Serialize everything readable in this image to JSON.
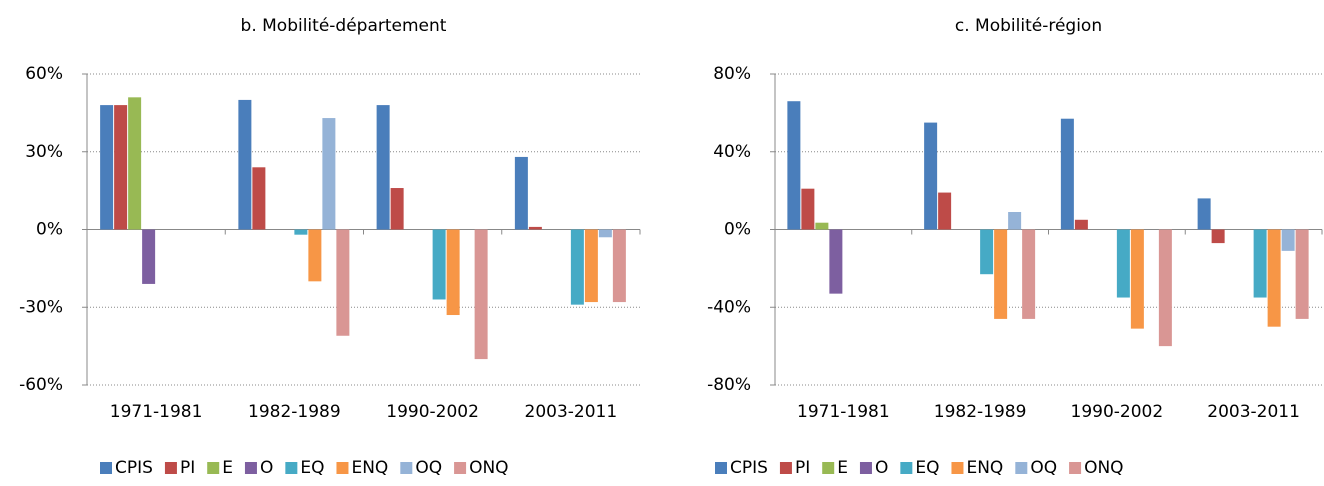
{
  "chart_data": [
    {
      "type": "bar",
      "title": "b. Mobilité-département",
      "categories": [
        "1971-1981",
        "1982-1989",
        "1990-2002",
        "2003-2011"
      ],
      "series": [
        {
          "name": "CPIS",
          "color": "#4a7ebb",
          "values": [
            48,
            50,
            48,
            28
          ]
        },
        {
          "name": "PI",
          "color": "#be4b48",
          "values": [
            48,
            24,
            16,
            1
          ]
        },
        {
          "name": "E",
          "color": "#98b954",
          "values": [
            51,
            0,
            0,
            0
          ]
        },
        {
          "name": "O",
          "color": "#7d5fa0",
          "values": [
            -21,
            0,
            0,
            0
          ]
        },
        {
          "name": "EQ",
          "color": "#46aac5",
          "values": [
            0,
            -2,
            -27,
            -29
          ]
        },
        {
          "name": "ENQ",
          "color": "#f79646",
          "values": [
            0,
            -20,
            -33,
            -28
          ]
        },
        {
          "name": "OQ",
          "color": "#95b3d7",
          "values": [
            0,
            43,
            0,
            -3
          ]
        },
        {
          "name": "ONQ",
          "color": "#d99694",
          "values": [
            0,
            -41,
            -50,
            -28
          ]
        }
      ],
      "ylim": [
        -60,
        60
      ],
      "yticks": [
        {
          "value": -60,
          "label": "-60%"
        },
        {
          "value": -30,
          "label": "-30%"
        },
        {
          "value": 0,
          "label": "0%"
        },
        {
          "value": 30,
          "label": "30%"
        },
        {
          "value": 60,
          "label": "60%"
        }
      ],
      "grid": true,
      "legend": "bottom"
    },
    {
      "type": "bar",
      "title": "c. Mobilité-région",
      "categories": [
        "1971-1981",
        "1982-1989",
        "1990-2002",
        "2003-2011"
      ],
      "series": [
        {
          "name": "CPIS",
          "color": "#4a7ebb",
          "values": [
            66,
            55,
            57,
            16
          ]
        },
        {
          "name": "PI",
          "color": "#be4b48",
          "values": [
            21,
            19,
            5,
            -7
          ]
        },
        {
          "name": "E",
          "color": "#98b954",
          "values": [
            3.5,
            0,
            0,
            0
          ]
        },
        {
          "name": "O",
          "color": "#7d5fa0",
          "values": [
            -33,
            0,
            0,
            0
          ]
        },
        {
          "name": "EQ",
          "color": "#46aac5",
          "values": [
            0,
            -23,
            -35,
            -35
          ]
        },
        {
          "name": "ENQ",
          "color": "#f79646",
          "values": [
            0,
            -46,
            -51,
            -50
          ]
        },
        {
          "name": "OQ",
          "color": "#95b3d7",
          "values": [
            0,
            9,
            0,
            -11
          ]
        },
        {
          "name": "ONQ",
          "color": "#d99694",
          "values": [
            0,
            -46,
            -60,
            -46
          ]
        }
      ],
      "ylim": [
        -80,
        80
      ],
      "yticks": [
        {
          "value": -80,
          "label": "-80%"
        },
        {
          "value": -40,
          "label": "-40%"
        },
        {
          "value": 0,
          "label": "0%"
        },
        {
          "value": 40,
          "label": "40%"
        },
        {
          "value": 80,
          "label": "80%"
        }
      ],
      "grid": true,
      "legend": "bottom"
    }
  ]
}
